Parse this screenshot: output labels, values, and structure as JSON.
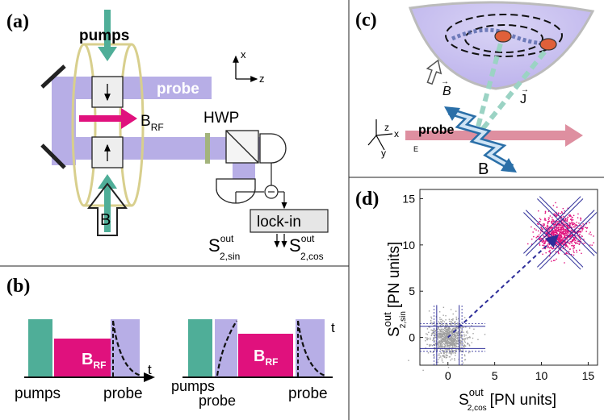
{
  "panels": {
    "a": {
      "label": "(a)",
      "pumps": "pumps",
      "probe": "probe",
      "brf_main": "B",
      "brf_sub": "RF",
      "hwp": "HWP",
      "b_field": "B",
      "lockin": "lock-in",
      "axis_x": "x",
      "axis_z": "z",
      "s_sin_main": "S",
      "s_sin_sup": "out",
      "s_sin_sub": "2,sin",
      "s_cos_main": "S",
      "s_cos_sup": "out",
      "s_cos_sub": "2,cos"
    },
    "b": {
      "label": "(b)",
      "brf_main": "B",
      "brf_sub": "RF",
      "t1": "t",
      "t2": "t",
      "left_pumps": "pumps",
      "left_probe": "probe",
      "right_pumps": "pumps",
      "right_probe1": "probe",
      "right_probe2": "probe"
    },
    "c": {
      "label": "(c)",
      "b_vec": "B",
      "j_vec": "J",
      "probe": "probe",
      "b_field": "B",
      "axis_z": "z",
      "axis_x": "x",
      "axis_y": "y",
      "axis_e": "E"
    },
    "d": {
      "label": "(d)",
      "ylabel_main": "S",
      "ylabel_sup": "out",
      "ylabel_sub": "2,sin",
      "ylabel_unit": "[PN units]",
      "xlabel_main": "S",
      "xlabel_sup": "out",
      "xlabel_sub": "2,cos",
      "xlabel_unit": "[PN units]"
    }
  },
  "colors": {
    "pump": "#4fae98",
    "probe": "#b7aee6",
    "rf": "#e0117d",
    "coil": "#d8cf8d",
    "gray_cloud": "#a0a0a0",
    "pink_cloud": "#e0117d",
    "line_blue": "#2e2e99"
  },
  "chart_data": {
    "type": "scatter",
    "title": "",
    "xlabel": "S2,cos out [PN units]",
    "ylabel": "S2,sin out [PN units]",
    "xlim": [
      -3,
      16
    ],
    "ylim": [
      -3,
      16
    ],
    "x_ticks": [
      0,
      5,
      10,
      15
    ],
    "y_ticks": [
      0,
      5,
      10,
      15
    ],
    "series": [
      {
        "name": "",
        "center": [
          0,
          0
        ],
        "spread": [
          1,
          1
        ],
        "color": "gray"
      },
      {
        "name": "",
        "center": [
          12,
          11.3
        ],
        "spread": [
          1.2,
          1.0
        ],
        "color": "magenta"
      }
    ]
  }
}
